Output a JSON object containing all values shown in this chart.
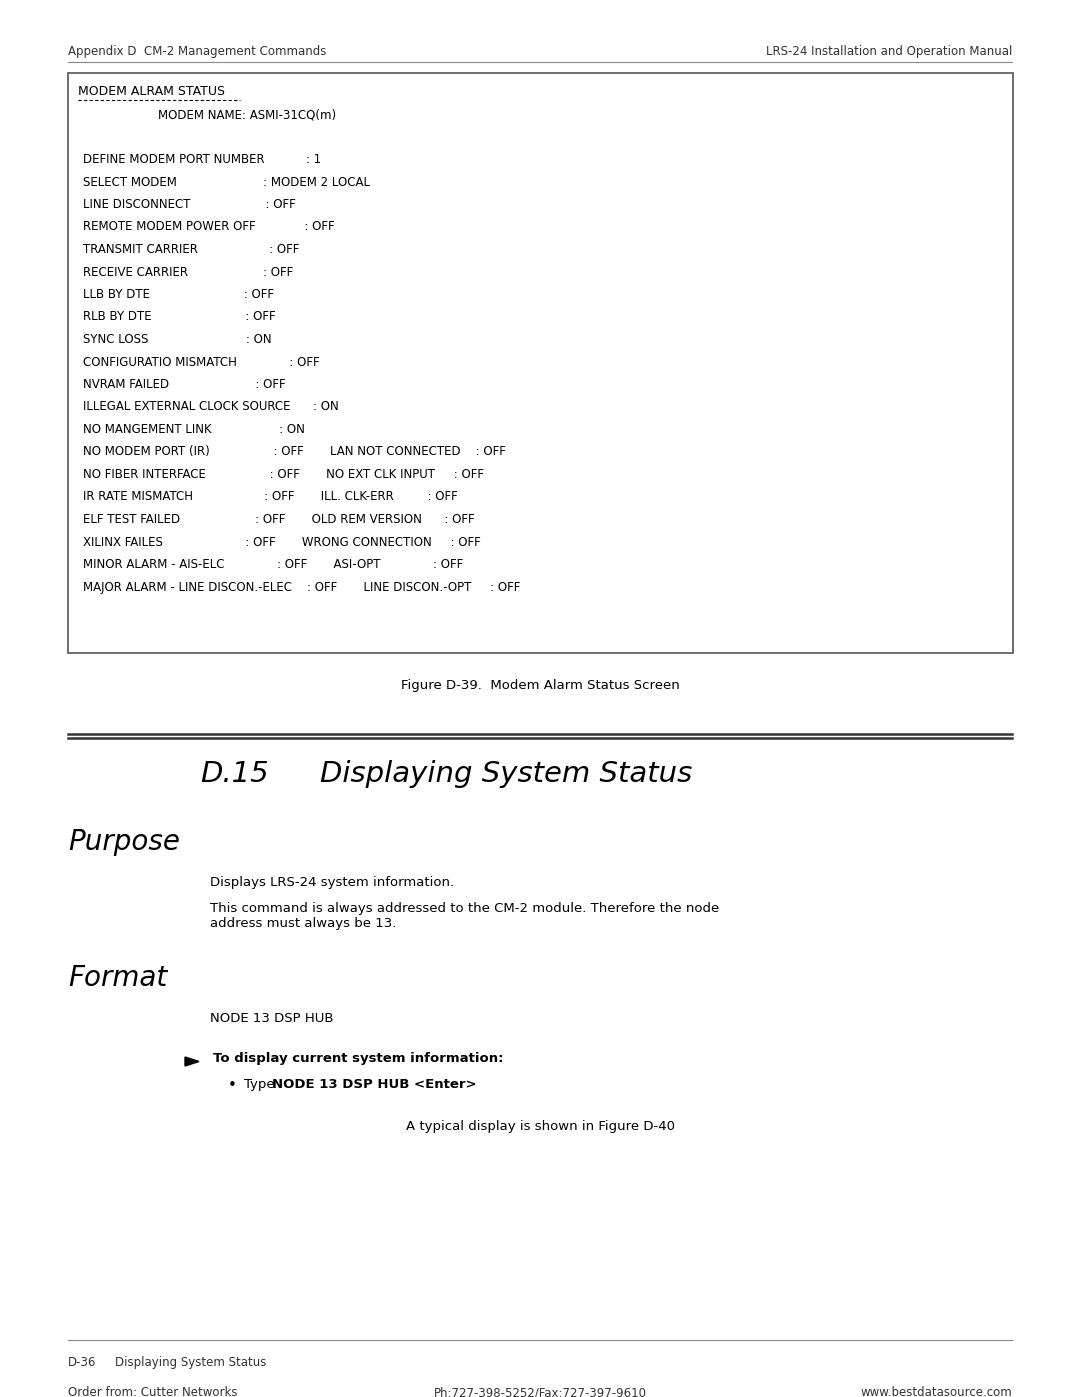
{
  "page_bg": "#ffffff",
  "header_left": "Appendix D  CM-2 Management Commands",
  "header_right": "LRS-24 Installation and Operation Manual",
  "footer_left": "Order from: Cutter Networks",
  "footer_center": "Ph:727-398-5252/Fax:727-397-9610",
  "footer_right": "www.bestdatasource.com",
  "footer_page": "D-36",
  "footer_page_label": "Displaying System Status",
  "terminal_title": "MODEM ALRAM STATUS",
  "terminal_lines": [
    "                    MODEM NAME: ASMI-31CQ(m)",
    "",
    "DEFINE MODEM PORT NUMBER           : 1",
    "SELECT MODEM                       : MODEM 2 LOCAL",
    "LINE DISCONNECT                    : OFF",
    "REMOTE MODEM POWER OFF             : OFF",
    "TRANSMIT CARRIER                   : OFF",
    "RECEIVE CARRIER                    : OFF",
    "LLB BY DTE                         : OFF",
    "RLB BY DTE                         : OFF",
    "SYNC LOSS                          : ON",
    "CONFIGURATIO MISMATCH              : OFF",
    "NVRAM FAILED                       : OFF",
    "ILLEGAL EXTERNAL CLOCK SOURCE      : ON",
    "NO MANGEMENT LINK                  : ON",
    "NO MODEM PORT (IR)                 : OFF       LAN NOT CONNECTED    : OFF",
    "NO FIBER INTERFACE                 : OFF       NO EXT CLK INPUT     : OFF",
    "IR RATE MISMATCH                   : OFF       ILL. CLK-ERR         : OFF",
    "ELF TEST FAILED                    : OFF       OLD REM VERSION      : OFF",
    "XILINX FAILES                      : OFF       WRONG CONNECTION     : OFF",
    "MINOR ALARM - AIS-ELC              : OFF       ASI-OPT              : OFF",
    "MAJOR ALARM - LINE DISCON.-ELEC    : OFF       LINE DISCON.-OPT     : OFF"
  ],
  "figure_caption": "Figure D-39.  Modem Alarm Status Screen",
  "section_number": "D.15",
  "section_title": "Displaying System Status",
  "purpose_heading": "Purpose",
  "purpose_text1": "Displays LRS-24 system information.",
  "purpose_text2": "This command is always addressed to the CM-2 module. Therefore the node\naddress must always be 13.",
  "format_heading": "Format",
  "format_code": "NODE 13 DSP HUB",
  "step_bold": "To display current system information:",
  "step_bullet_prefix": "Type ",
  "step_bullet_bold": "NODE 13 DSP HUB <Enter>",
  "step_bullet_suffix": ".",
  "step_result": "A typical display is shown in Figure D-40"
}
